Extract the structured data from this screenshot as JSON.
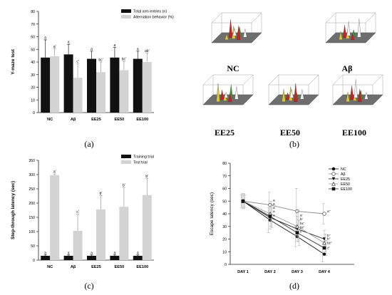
{
  "colors": {
    "dark": "#111111",
    "light": "#d3d3d3",
    "axis": "#222222",
    "grid": "#a0a0a0",
    "plane": "#6e6e6e",
    "peak_red": "#cc1f1f",
    "peak_yellow": "#d8cc35",
    "peak_green": "#3a9a3a",
    "peak_white": "#f2f2f2"
  },
  "chart_data": [
    {
      "panel": "(a)",
      "type": "bar",
      "ylabel": "Y-maze test",
      "ylim": [
        0,
        80
      ],
      "yticks": [
        0,
        10,
        20,
        30,
        40,
        50,
        60,
        70,
        80
      ],
      "categories": [
        "NC",
        "Aβ",
        "EE25",
        "EE50",
        "EE100"
      ],
      "series": [
        {
          "name": "Total arm entries (n)",
          "values": [
            43.5,
            46,
            42.5,
            43.5,
            42.5
          ],
          "errors": [
            14,
            8,
            6,
            8,
            6
          ],
          "labels": [
            "a",
            "a",
            "a",
            "a",
            "a"
          ]
        },
        {
          "name": "Alternation behavior (%)",
          "values": [
            44.5,
            27.5,
            32,
            33.5,
            40
          ],
          "errors": [
            6,
            11,
            8,
            7,
            7
          ],
          "labels": [
            "a'",
            "c'",
            "bc'",
            "bc'",
            "ab'"
          ]
        }
      ],
      "legend": "top-right"
    },
    {
      "panel": "(b)",
      "type": "other",
      "groups": [
        "NC",
        "Aβ",
        "EE25",
        "EE50",
        "EE100"
      ]
    },
    {
      "panel": "(c)",
      "type": "bar",
      "ylabel": "Step-through latency (sec)",
      "ylim": [
        0,
        350
      ],
      "yticks": [
        0,
        50,
        100,
        150,
        200,
        250,
        300,
        350
      ],
      "categories": [
        "NC",
        "Aβ",
        "EE25",
        "EE50",
        "EE100"
      ],
      "series": [
        {
          "name": "Training trial",
          "values": [
            15,
            15,
            15,
            15,
            15
          ],
          "errors": [
            3,
            3,
            3,
            3,
            3
          ],
          "labels": [
            "a",
            "a",
            "a",
            "a",
            "a"
          ]
        },
        {
          "name": "Test trial",
          "values": [
            298,
            103,
            178,
            187,
            228
          ],
          "errors": [
            4,
            58,
            48,
            68,
            58
          ],
          "labels": [
            "a'",
            "c'",
            "b'",
            "b'",
            "b'"
          ]
        }
      ],
      "legend": "top-right"
    },
    {
      "panel": "(d)",
      "type": "line",
      "ylabel": "Escape latency (sec)",
      "ylim": [
        0,
        80
      ],
      "yticks": [
        0,
        10,
        20,
        30,
        40,
        50,
        60,
        70,
        80
      ],
      "categories": [
        "DAY 1",
        "DAY 2",
        "DAY 3",
        "DAY 4"
      ],
      "series": [
        {
          "name": "NC",
          "marker": "filled-circle",
          "values": [
            50,
            35,
            22,
            8
          ],
          "errors": [
            5,
            10,
            8,
            6
          ]
        },
        {
          "name": "Aβ",
          "marker": "open-circle",
          "values": [
            50,
            47,
            42,
            40
          ],
          "errors": [
            6,
            10,
            18,
            8
          ]
        },
        {
          "name": "EE25",
          "marker": "filled-triangle-down",
          "values": [
            50,
            37,
            28,
            20
          ],
          "errors": [
            5,
            9,
            10,
            7
          ]
        },
        {
          "name": "EE50",
          "marker": "open-triangle-up",
          "values": [
            50,
            40,
            30,
            17
          ],
          "errors": [
            6,
            10,
            12,
            7
          ]
        },
        {
          "name": "EE100",
          "marker": "filled-square",
          "values": [
            50,
            38,
            25,
            13
          ],
          "errors": [
            5,
            9,
            10,
            6
          ]
        }
      ],
      "day2_labels": [
        "a",
        "a",
        "a",
        "a",
        "a"
      ],
      "day3_labels": [
        "a'",
        "b'",
        "bc'",
        "bc'",
        "c'"
      ],
      "day4_labels": [
        "a''",
        "b''",
        "b''",
        "bc''",
        "c''"
      ],
      "legend": "top-right"
    }
  ],
  "panel_labels": [
    "(a)",
    "(b)",
    "(c)",
    "(d)"
  ]
}
